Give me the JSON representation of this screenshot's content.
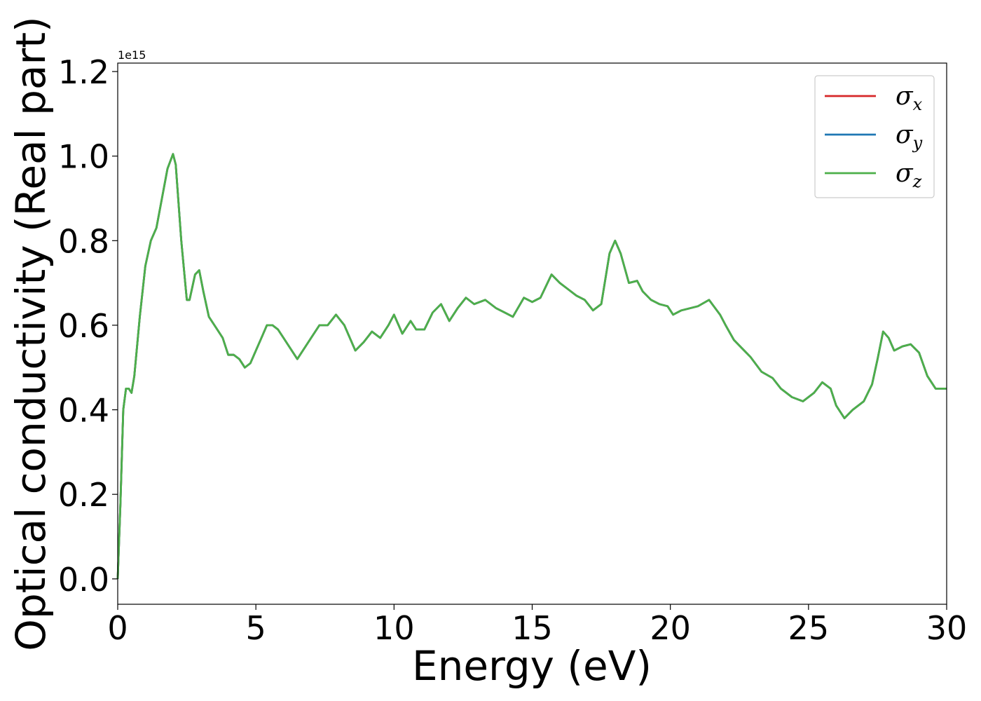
{
  "chart_data": {
    "type": "line",
    "title": "",
    "xlabel": "Energy (eV)",
    "ylabel": "Optical conductivity (Real part)",
    "y_offset_label": "1e15",
    "xlim": [
      0,
      30
    ],
    "ylim": [
      -0.06,
      1.22
    ],
    "x_ticks": [
      0,
      5,
      10,
      15,
      20,
      25,
      30
    ],
    "y_ticks": [
      0.0,
      0.2,
      0.4,
      0.6,
      0.8,
      1.0,
      1.2
    ],
    "x_tick_labels": [
      "0",
      "5",
      "10",
      "15",
      "20",
      "25",
      "30"
    ],
    "y_tick_labels": [
      "0.0",
      "0.2",
      "0.4",
      "0.6",
      "0.8",
      "1.0",
      "1.2"
    ],
    "grid": false,
    "legend_position": "top-right",
    "x": [
      0,
      0.1,
      0.2,
      0.3,
      0.4,
      0.5,
      0.6,
      0.8,
      1.0,
      1.2,
      1.4,
      1.6,
      1.8,
      2.0,
      2.1,
      2.3,
      2.5,
      2.6,
      2.8,
      2.95,
      3.1,
      3.3,
      3.6,
      3.8,
      4.0,
      4.2,
      4.4,
      4.6,
      4.8,
      5.0,
      5.2,
      5.4,
      5.6,
      5.8,
      6.0,
      6.2,
      6.5,
      6.8,
      7.0,
      7.3,
      7.6,
      7.9,
      8.2,
      8.6,
      8.9,
      9.2,
      9.5,
      9.8,
      10.0,
      10.3,
      10.6,
      10.8,
      11.1,
      11.4,
      11.7,
      12.0,
      12.3,
      12.6,
      12.9,
      13.3,
      13.7,
      14.0,
      14.3,
      14.7,
      15.0,
      15.3,
      15.7,
      16.0,
      16.3,
      16.6,
      16.9,
      17.2,
      17.5,
      17.8,
      18.0,
      18.2,
      18.5,
      18.8,
      19.0,
      19.3,
      19.6,
      19.9,
      20.1,
      20.4,
      20.7,
      21.0,
      21.4,
      21.8,
      22.0,
      22.3,
      22.6,
      22.9,
      23.3,
      23.7,
      24.0,
      24.4,
      24.8,
      25.2,
      25.5,
      25.8,
      26.0,
      26.3,
      26.6,
      27.0,
      27.3,
      27.5,
      27.7,
      27.9,
      28.1,
      28.4,
      28.7,
      29.0,
      29.3,
      29.6,
      30.0
    ],
    "series": [
      {
        "name": "σx",
        "color": "#d62728",
        "values": [
          0.0,
          0.18,
          0.4,
          0.45,
          0.45,
          0.44,
          0.48,
          0.62,
          0.74,
          0.8,
          0.83,
          0.9,
          0.97,
          1.005,
          0.98,
          0.8,
          0.66,
          0.66,
          0.72,
          0.73,
          0.68,
          0.62,
          0.59,
          0.57,
          0.53,
          0.53,
          0.52,
          0.5,
          0.51,
          0.54,
          0.57,
          0.6,
          0.6,
          0.59,
          0.57,
          0.55,
          0.52,
          0.55,
          0.57,
          0.6,
          0.6,
          0.625,
          0.6,
          0.54,
          0.56,
          0.585,
          0.57,
          0.6,
          0.625,
          0.58,
          0.61,
          0.59,
          0.59,
          0.63,
          0.65,
          0.61,
          0.64,
          0.665,
          0.65,
          0.66,
          0.64,
          0.63,
          0.62,
          0.665,
          0.655,
          0.665,
          0.72,
          0.7,
          0.685,
          0.67,
          0.66,
          0.635,
          0.65,
          0.77,
          0.8,
          0.77,
          0.7,
          0.705,
          0.68,
          0.66,
          0.65,
          0.645,
          0.625,
          0.635,
          0.64,
          0.645,
          0.66,
          0.625,
          0.6,
          0.565,
          0.545,
          0.525,
          0.49,
          0.475,
          0.45,
          0.43,
          0.42,
          0.44,
          0.465,
          0.45,
          0.41,
          0.38,
          0.4,
          0.42,
          0.46,
          0.52,
          0.585,
          0.57,
          0.54,
          0.55,
          0.555,
          0.535,
          0.48,
          0.45,
          0.45
        ]
      },
      {
        "name": "σy",
        "color": "#1f77b4",
        "values": [
          0.0,
          0.18,
          0.4,
          0.45,
          0.45,
          0.44,
          0.48,
          0.62,
          0.74,
          0.8,
          0.83,
          0.9,
          0.97,
          1.005,
          0.98,
          0.8,
          0.66,
          0.66,
          0.72,
          0.73,
          0.68,
          0.62,
          0.59,
          0.57,
          0.53,
          0.53,
          0.52,
          0.5,
          0.51,
          0.54,
          0.57,
          0.6,
          0.6,
          0.59,
          0.57,
          0.55,
          0.52,
          0.55,
          0.57,
          0.6,
          0.6,
          0.625,
          0.6,
          0.54,
          0.56,
          0.585,
          0.57,
          0.6,
          0.625,
          0.58,
          0.61,
          0.59,
          0.59,
          0.63,
          0.65,
          0.61,
          0.64,
          0.665,
          0.65,
          0.66,
          0.64,
          0.63,
          0.62,
          0.665,
          0.655,
          0.665,
          0.72,
          0.7,
          0.685,
          0.67,
          0.66,
          0.635,
          0.65,
          0.77,
          0.8,
          0.77,
          0.7,
          0.705,
          0.68,
          0.66,
          0.65,
          0.645,
          0.625,
          0.635,
          0.64,
          0.645,
          0.66,
          0.625,
          0.6,
          0.565,
          0.545,
          0.525,
          0.49,
          0.475,
          0.45,
          0.43,
          0.42,
          0.44,
          0.465,
          0.45,
          0.41,
          0.38,
          0.4,
          0.42,
          0.46,
          0.52,
          0.585,
          0.57,
          0.54,
          0.55,
          0.555,
          0.535,
          0.48,
          0.45,
          0.45
        ]
      },
      {
        "name": "σz",
        "color": "#4daf4a",
        "values": [
          0.0,
          0.18,
          0.4,
          0.45,
          0.45,
          0.44,
          0.48,
          0.62,
          0.74,
          0.8,
          0.83,
          0.9,
          0.97,
          1.005,
          0.98,
          0.8,
          0.66,
          0.66,
          0.72,
          0.73,
          0.68,
          0.62,
          0.59,
          0.57,
          0.53,
          0.53,
          0.52,
          0.5,
          0.51,
          0.54,
          0.57,
          0.6,
          0.6,
          0.59,
          0.57,
          0.55,
          0.52,
          0.55,
          0.57,
          0.6,
          0.6,
          0.625,
          0.6,
          0.54,
          0.56,
          0.585,
          0.57,
          0.6,
          0.625,
          0.58,
          0.61,
          0.59,
          0.59,
          0.63,
          0.65,
          0.61,
          0.64,
          0.665,
          0.65,
          0.66,
          0.64,
          0.63,
          0.62,
          0.665,
          0.655,
          0.665,
          0.72,
          0.7,
          0.685,
          0.67,
          0.66,
          0.635,
          0.65,
          0.77,
          0.8,
          0.77,
          0.7,
          0.705,
          0.68,
          0.66,
          0.65,
          0.645,
          0.625,
          0.635,
          0.64,
          0.645,
          0.66,
          0.625,
          0.6,
          0.565,
          0.545,
          0.525,
          0.49,
          0.475,
          0.45,
          0.43,
          0.42,
          0.44,
          0.465,
          0.45,
          0.41,
          0.38,
          0.4,
          0.42,
          0.46,
          0.52,
          0.585,
          0.57,
          0.54,
          0.55,
          0.555,
          0.535,
          0.48,
          0.45,
          0.45
        ]
      }
    ],
    "legend": [
      {
        "symbol": "σ",
        "sub": "x",
        "color": "#d62728"
      },
      {
        "symbol": "σ",
        "sub": "y",
        "color": "#1f77b4"
      },
      {
        "symbol": "σ",
        "sub": "z",
        "color": "#4daf4a"
      }
    ]
  }
}
